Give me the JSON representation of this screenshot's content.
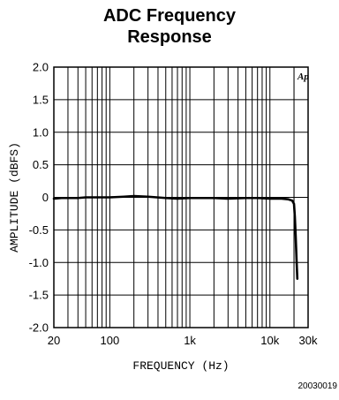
{
  "chart_data": {
    "type": "line",
    "title_lines": [
      "ADC Frequency",
      "Response"
    ],
    "xlabel": "FREQUENCY (Hz)",
    "ylabel": "AMPLITUDE (dBFS)",
    "x_scale": "log",
    "xlim": [
      20,
      30000
    ],
    "ylim": [
      -2.0,
      2.0
    ],
    "x_tick_labels": [
      {
        "value": 20,
        "label": "20"
      },
      {
        "value": 100,
        "label": "100"
      },
      {
        "value": 1000,
        "label": "1k"
      },
      {
        "value": 10000,
        "label": "10k"
      },
      {
        "value": 30000,
        "label": "30k"
      }
    ],
    "y_tick_labels": [
      {
        "value": 2.0,
        "label": "2.0"
      },
      {
        "value": 1.5,
        "label": "1.5"
      },
      {
        "value": 1.0,
        "label": "1.0"
      },
      {
        "value": 0.5,
        "label": "0.5"
      },
      {
        "value": 0,
        "label": "0"
      },
      {
        "value": -0.5,
        "label": "-0.5"
      },
      {
        "value": -1.0,
        "label": "-1.0"
      },
      {
        "value": -1.5,
        "label": "-1.5"
      },
      {
        "value": -2.0,
        "label": "-2.0"
      }
    ],
    "grid": true,
    "annotation": "Ap",
    "series": [
      {
        "x": [
          20,
          25,
          30,
          40,
          50,
          70,
          100,
          150,
          200,
          300,
          500,
          700,
          1000,
          1500,
          2000,
          3000,
          5000,
          7000,
          10000,
          14000,
          17000,
          19000,
          20000,
          20500,
          21000,
          21500,
          22000
        ],
        "y": [
          -0.02,
          -0.01,
          -0.01,
          -0.01,
          0.0,
          0.0,
          0.0,
          0.01,
          0.02,
          0.01,
          -0.01,
          -0.02,
          -0.01,
          -0.01,
          -0.01,
          -0.02,
          -0.01,
          -0.01,
          -0.02,
          -0.02,
          -0.03,
          -0.05,
          -0.1,
          -0.3,
          -0.6,
          -0.95,
          -1.25
        ]
      }
    ],
    "line_color": "#000000",
    "grid_color": "#000000"
  },
  "figure_id": "20030019"
}
